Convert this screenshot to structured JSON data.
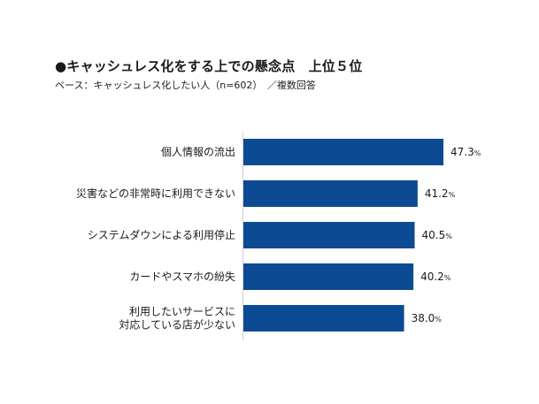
{
  "title": "●キャッシュレス化をする上での懸念点　上位５位",
  "subtitle": "ベース：キャッシュレス化したい人（n=602）　／複数回答",
  "chart_data": {
    "type": "bar",
    "orientation": "horizontal",
    "categories": [
      [
        "個人情報の流出"
      ],
      [
        "災害などの非常時に利用できない"
      ],
      [
        "システムダウンによる利用停止"
      ],
      [
        "カードやスマホの紛失"
      ],
      [
        "利用したいサービスに",
        "対応している店が少ない"
      ]
    ],
    "values": [
      47.3,
      41.2,
      40.5,
      40.2,
      38.0
    ],
    "value_labels": [
      "47.3",
      "41.2",
      "40.5",
      "40.2",
      "38.0"
    ],
    "unit": "%",
    "bar_color": "#0d4a94",
    "grid": false,
    "legend": "none"
  }
}
